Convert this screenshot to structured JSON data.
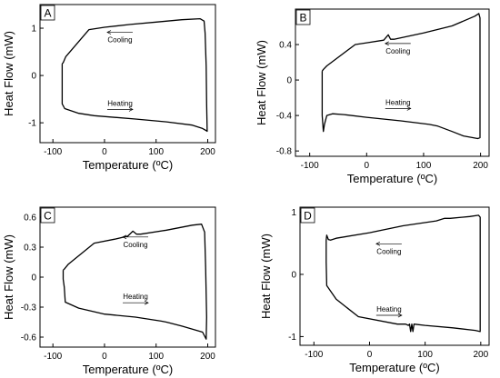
{
  "chart_data": [
    {
      "type": "line",
      "panel_label": "A",
      "xlabel": "Temperature (ºC)",
      "ylabel": "Heat Flow (mW)",
      "xlim": [
        -125,
        215
      ],
      "ylim": [
        -1.42,
        1.5
      ],
      "xticks": [
        -100,
        0,
        100,
        200
      ],
      "yticks": [
        -1,
        0,
        1
      ],
      "tick_labels_x": [
        "-100",
        "0",
        "100",
        "200"
      ],
      "tick_labels_y": [
        "-1",
        "0",
        "1"
      ],
      "series": [
        {
          "name": "",
          "x": [
            -82,
            -80,
            -75,
            -30,
            0,
            50,
            100,
            150,
            185,
            193,
            195,
            197,
            198,
            199,
            198,
            190,
            170,
            120,
            60,
            -20,
            -50,
            -77,
            -82,
            -82
          ],
          "y": [
            0.25,
            0.27,
            0.4,
            0.97,
            1.02,
            1.08,
            1.13,
            1.18,
            1.2,
            1.15,
            0.9,
            0.2,
            -0.6,
            -1.18,
            -1.17,
            -1.12,
            -1.05,
            -0.98,
            -0.92,
            -0.85,
            -0.8,
            -0.7,
            -0.6,
            0.25
          ]
        }
      ],
      "annotations": [
        {
          "text": "Cooling",
          "x": 30,
          "y": 0.74,
          "arrow": "left"
        },
        {
          "text": "Heating",
          "x": 30,
          "y": -0.64,
          "arrow": "right"
        }
      ]
    },
    {
      "type": "line",
      "panel_label": "B",
      "xlabel": "Temperature (ºC)",
      "ylabel": "Heat Flow (mW)",
      "xlim": [
        -125,
        215
      ],
      "ylim": [
        -0.86,
        0.8
      ],
      "xticks": [
        -100,
        0,
        100,
        200
      ],
      "yticks": [
        -0.8,
        -0.4,
        0,
        0.4
      ],
      "tick_labels_x": [
        "-100",
        "0",
        "100",
        "200"
      ],
      "tick_labels_y": [
        "-0.8",
        "-0.4",
        "0",
        "0.4"
      ],
      "series": [
        {
          "name": "",
          "x": [
            -78,
            -76,
            -70,
            -20,
            0,
            30,
            38,
            42,
            48,
            100,
            150,
            190,
            197,
            199,
            199,
            195,
            170,
            150,
            125,
            110,
            60,
            0,
            -40,
            -60,
            -70,
            -74,
            -76,
            -78,
            -78
          ],
          "y": [
            0.1,
            0.12,
            0.16,
            0.4,
            0.42,
            0.45,
            0.51,
            0.46,
            0.46,
            0.53,
            0.61,
            0.72,
            0.75,
            0.7,
            -0.65,
            -0.66,
            -0.63,
            -0.58,
            -0.52,
            -0.5,
            -0.46,
            -0.42,
            -0.39,
            -0.38,
            -0.4,
            -0.5,
            -0.58,
            -0.4,
            0.1
          ]
        }
      ],
      "annotations": [
        {
          "text": "Cooling",
          "x": 55,
          "y": 0.32,
          "arrow": "left"
        },
        {
          "text": "Heating",
          "x": 55,
          "y": -0.28,
          "arrow": "right"
        }
      ]
    },
    {
      "type": "line",
      "panel_label": "C",
      "xlabel": "Temperature (ºC)",
      "ylabel": "Heat Flow (mW)",
      "xlim": [
        -125,
        215
      ],
      "ylim": [
        -0.7,
        0.7
      ],
      "xticks": [
        -100,
        0,
        100,
        200
      ],
      "yticks": [
        -0.6,
        -0.3,
        0,
        0.3,
        0.6
      ],
      "tick_labels_x": [
        "-100",
        "0",
        "100",
        "200"
      ],
      "tick_labels_y": [
        "-0.6",
        "-0.3",
        "0",
        "0.3",
        "0.6"
      ],
      "series": [
        {
          "name": "",
          "x": [
            -80,
            -78,
            -70,
            -20,
            20,
            45,
            55,
            62,
            70,
            120,
            170,
            188,
            194,
            196,
            198,
            197,
            190,
            150,
            120,
            110,
            60,
            0,
            -50,
            -76,
            -78,
            -80,
            -80
          ],
          "y": [
            0.07,
            0.08,
            0.13,
            0.34,
            0.38,
            0.41,
            0.46,
            0.43,
            0.43,
            0.47,
            0.52,
            0.53,
            0.45,
            0.1,
            -0.4,
            -0.62,
            -0.55,
            -0.49,
            -0.45,
            -0.44,
            -0.4,
            -0.37,
            -0.31,
            -0.25,
            -0.1,
            -0.02,
            0.07
          ]
        }
      ],
      "annotations": [
        {
          "text": "Cooling",
          "x": 60,
          "y": 0.32,
          "arrow": "left"
        },
        {
          "text": "Heating",
          "x": 60,
          "y": -0.22,
          "arrow": "right"
        }
      ]
    },
    {
      "type": "line",
      "panel_label": "D",
      "xlabel": "Temperature (ºC)",
      "ylabel": "Heat Flow (mW)",
      "xlim": [
        -125,
        215
      ],
      "ylim": [
        -1.14,
        1.08
      ],
      "xticks": [
        -100,
        0,
        100,
        200
      ],
      "yticks": [
        -1,
        0,
        1
      ],
      "tick_labels_x": [
        "-100",
        "0",
        "100",
        "200"
      ],
      "tick_labels_y": [
        "-1",
        "0",
        "1"
      ],
      "series": [
        {
          "name": "",
          "x": [
            -78,
            -77,
            -74,
            -70,
            -60,
            0,
            60,
            120,
            135,
            145,
            180,
            196,
            199,
            199,
            190,
            150,
            100,
            80,
            78,
            76,
            74,
            72,
            70,
            65,
            50,
            -20,
            -60,
            -77,
            -78,
            -78
          ],
          "y": [
            0.55,
            0.63,
            0.56,
            0.55,
            0.58,
            0.67,
            0.78,
            0.86,
            0.9,
            0.9,
            0.93,
            0.95,
            0.92,
            -0.92,
            -0.9,
            -0.86,
            -0.82,
            -0.8,
            -0.92,
            -0.8,
            -0.92,
            -0.8,
            -0.82,
            -0.8,
            -0.8,
            -0.68,
            -0.4,
            -0.18,
            0.2,
            0.55
          ]
        }
      ],
      "annotations": [
        {
          "text": "Cooling",
          "x": 35,
          "y": 0.36,
          "arrow": "left"
        },
        {
          "text": "Heating",
          "x": 35,
          "y": -0.6,
          "arrow": "right"
        }
      ]
    }
  ]
}
